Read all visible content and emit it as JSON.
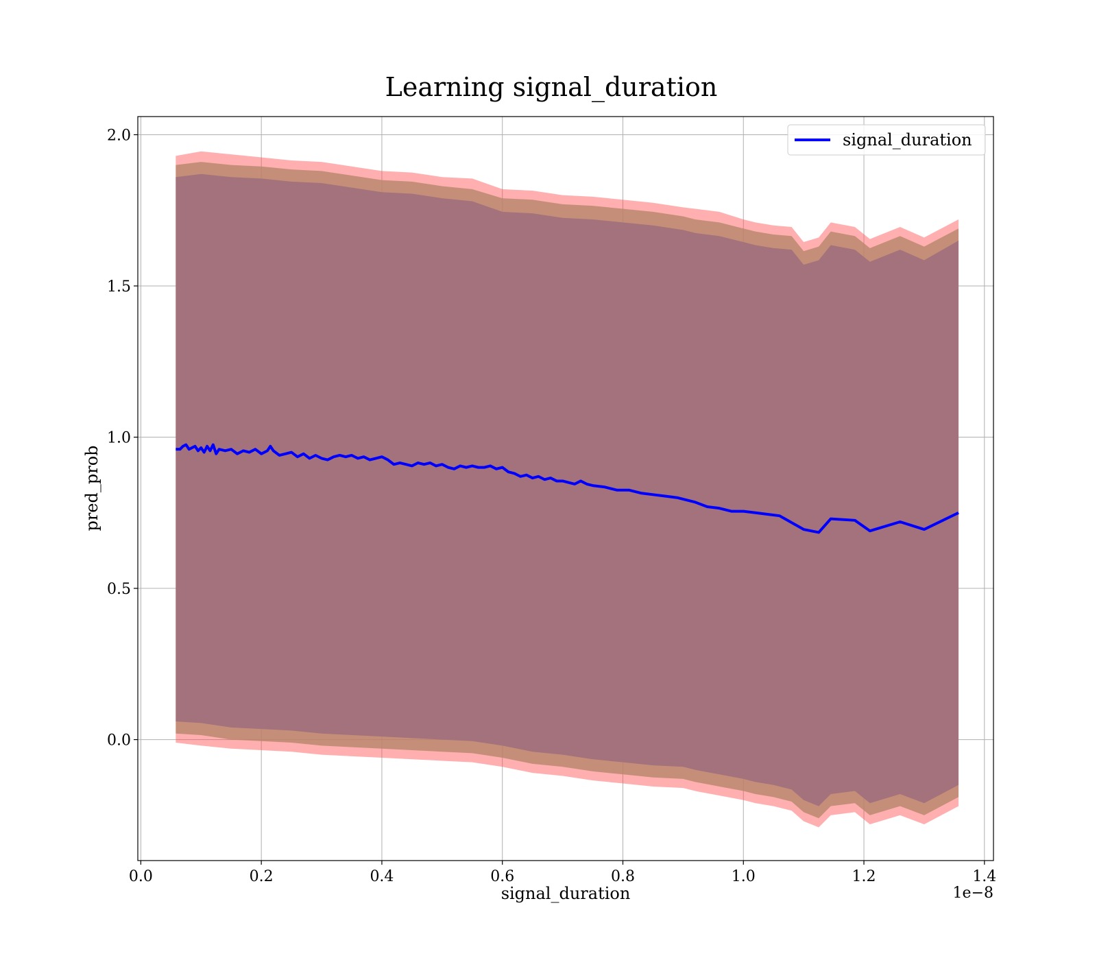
{
  "chart_data": {
    "type": "line",
    "title": "Learning signal_duration",
    "xlabel": "signal_duration",
    "ylabel": "pred_prob",
    "x_offset_label": "1e−8",
    "xlim": [
      -0.005,
      1.415
    ],
    "ylim": [
      -0.4,
      2.06
    ],
    "x_ticks": [
      0.0,
      0.2,
      0.4,
      0.6,
      0.8,
      1.0,
      1.2,
      1.4
    ],
    "x_tick_labels": [
      "0.0",
      "0.2",
      "0.4",
      "0.6",
      "0.8",
      "1.0",
      "1.2",
      "1.4"
    ],
    "y_ticks": [
      0.0,
      0.5,
      1.0,
      1.5,
      2.0
    ],
    "y_tick_labels": [
      "0.0",
      "0.5",
      "1.0",
      "1.5",
      "2.0"
    ],
    "grid": true,
    "legend_position": "top-right",
    "series": [
      {
        "name": "signal_duration",
        "color": "#0000ff",
        "x": [
          0.058,
          0.065,
          0.07,
          0.075,
          0.08,
          0.085,
          0.09,
          0.095,
          0.1,
          0.105,
          0.11,
          0.115,
          0.12,
          0.125,
          0.13,
          0.14,
          0.15,
          0.16,
          0.17,
          0.18,
          0.19,
          0.2,
          0.21,
          0.215,
          0.22,
          0.23,
          0.24,
          0.25,
          0.26,
          0.27,
          0.28,
          0.29,
          0.3,
          0.31,
          0.32,
          0.33,
          0.34,
          0.35,
          0.36,
          0.37,
          0.38,
          0.39,
          0.4,
          0.41,
          0.42,
          0.43,
          0.44,
          0.45,
          0.46,
          0.47,
          0.48,
          0.49,
          0.5,
          0.51,
          0.52,
          0.53,
          0.54,
          0.55,
          0.56,
          0.57,
          0.58,
          0.59,
          0.6,
          0.61,
          0.62,
          0.63,
          0.64,
          0.65,
          0.66,
          0.67,
          0.68,
          0.69,
          0.7,
          0.71,
          0.72,
          0.73,
          0.74,
          0.75,
          0.77,
          0.79,
          0.81,
          0.83,
          0.85,
          0.87,
          0.89,
          0.9,
          0.92,
          0.94,
          0.96,
          0.98,
          1.0,
          1.02,
          1.04,
          1.06,
          1.1,
          1.125,
          1.145,
          1.185,
          1.21,
          1.26,
          1.3,
          1.357
        ],
        "y": [
          0.96,
          0.96,
          0.97,
          0.975,
          0.96,
          0.965,
          0.97,
          0.955,
          0.965,
          0.95,
          0.97,
          0.955,
          0.975,
          0.945,
          0.96,
          0.955,
          0.96,
          0.945,
          0.955,
          0.95,
          0.96,
          0.945,
          0.955,
          0.97,
          0.955,
          0.94,
          0.945,
          0.95,
          0.935,
          0.945,
          0.93,
          0.94,
          0.93,
          0.925,
          0.935,
          0.94,
          0.935,
          0.94,
          0.93,
          0.935,
          0.925,
          0.93,
          0.935,
          0.925,
          0.91,
          0.915,
          0.91,
          0.905,
          0.915,
          0.91,
          0.915,
          0.905,
          0.91,
          0.9,
          0.895,
          0.905,
          0.9,
          0.905,
          0.9,
          0.9,
          0.905,
          0.895,
          0.9,
          0.885,
          0.88,
          0.87,
          0.875,
          0.865,
          0.87,
          0.86,
          0.865,
          0.855,
          0.855,
          0.85,
          0.845,
          0.855,
          0.845,
          0.84,
          0.835,
          0.825,
          0.825,
          0.815,
          0.81,
          0.805,
          0.8,
          0.795,
          0.785,
          0.77,
          0.765,
          0.755,
          0.755,
          0.75,
          0.745,
          0.74,
          0.695,
          0.685,
          0.73,
          0.725,
          0.69,
          0.72,
          0.695,
          0.75
        ]
      }
    ],
    "bands": [
      {
        "color": "#ff4d4d",
        "opacity": 0.45,
        "upper": [
          1.93,
          1.945,
          1.935,
          1.925,
          1.915,
          1.91,
          1.895,
          1.88,
          1.875,
          1.86,
          1.855,
          1.82,
          1.815,
          1.8,
          1.795,
          1.785,
          1.775,
          1.76,
          1.755,
          1.745,
          1.72,
          1.71,
          1.7,
          1.695,
          1.645,
          1.66,
          1.71,
          1.695,
          1.655,
          1.695,
          1.66,
          1.72
        ],
        "lower": [
          -0.01,
          -0.02,
          -0.03,
          -0.035,
          -0.04,
          -0.05,
          -0.055,
          -0.06,
          -0.065,
          -0.07,
          -0.075,
          -0.09,
          -0.11,
          -0.12,
          -0.135,
          -0.145,
          -0.155,
          -0.16,
          -0.17,
          -0.185,
          -0.2,
          -0.21,
          -0.22,
          -0.235,
          -0.27,
          -0.29,
          -0.25,
          -0.24,
          -0.28,
          -0.25,
          -0.28,
          -0.22
        ]
      },
      {
        "color": "#b7866c",
        "opacity": 0.8,
        "upper": [
          1.9,
          1.91,
          1.9,
          1.895,
          1.885,
          1.88,
          1.865,
          1.85,
          1.845,
          1.83,
          1.82,
          1.79,
          1.785,
          1.77,
          1.765,
          1.755,
          1.745,
          1.73,
          1.72,
          1.71,
          1.69,
          1.68,
          1.67,
          1.665,
          1.615,
          1.63,
          1.68,
          1.665,
          1.625,
          1.665,
          1.63,
          1.69
        ],
        "lower": [
          0.02,
          0.015,
          0.0,
          -0.005,
          -0.01,
          -0.02,
          -0.025,
          -0.03,
          -0.035,
          -0.04,
          -0.045,
          -0.06,
          -0.08,
          -0.09,
          -0.105,
          -0.115,
          -0.125,
          -0.13,
          -0.14,
          -0.155,
          -0.17,
          -0.18,
          -0.19,
          -0.205,
          -0.24,
          -0.26,
          -0.22,
          -0.21,
          -0.25,
          -0.22,
          -0.25,
          -0.19
        ]
      },
      {
        "color": "#a3727c",
        "opacity": 1.0,
        "upper": [
          1.86,
          1.87,
          1.86,
          1.855,
          1.845,
          1.84,
          1.825,
          1.81,
          1.805,
          1.79,
          1.78,
          1.745,
          1.74,
          1.725,
          1.72,
          1.71,
          1.7,
          1.685,
          1.675,
          1.665,
          1.645,
          1.635,
          1.625,
          1.62,
          1.57,
          1.585,
          1.635,
          1.62,
          1.58,
          1.62,
          1.585,
          1.65
        ],
        "lower": [
          0.06,
          0.055,
          0.04,
          0.035,
          0.03,
          0.02,
          0.015,
          0.01,
          0.005,
          0.0,
          -0.005,
          -0.02,
          -0.04,
          -0.05,
          -0.065,
          -0.075,
          -0.085,
          -0.09,
          -0.1,
          -0.115,
          -0.13,
          -0.14,
          -0.15,
          -0.165,
          -0.2,
          -0.22,
          -0.18,
          -0.17,
          -0.21,
          -0.18,
          -0.21,
          -0.15
        ]
      }
    ],
    "band_x": [
      0.058,
      0.1,
      0.15,
      0.2,
      0.25,
      0.3,
      0.35,
      0.4,
      0.45,
      0.5,
      0.55,
      0.6,
      0.65,
      0.7,
      0.75,
      0.8,
      0.85,
      0.9,
      0.92,
      0.96,
      1.0,
      1.02,
      1.05,
      1.08,
      1.1,
      1.125,
      1.145,
      1.185,
      1.21,
      1.26,
      1.3,
      1.357
    ]
  }
}
